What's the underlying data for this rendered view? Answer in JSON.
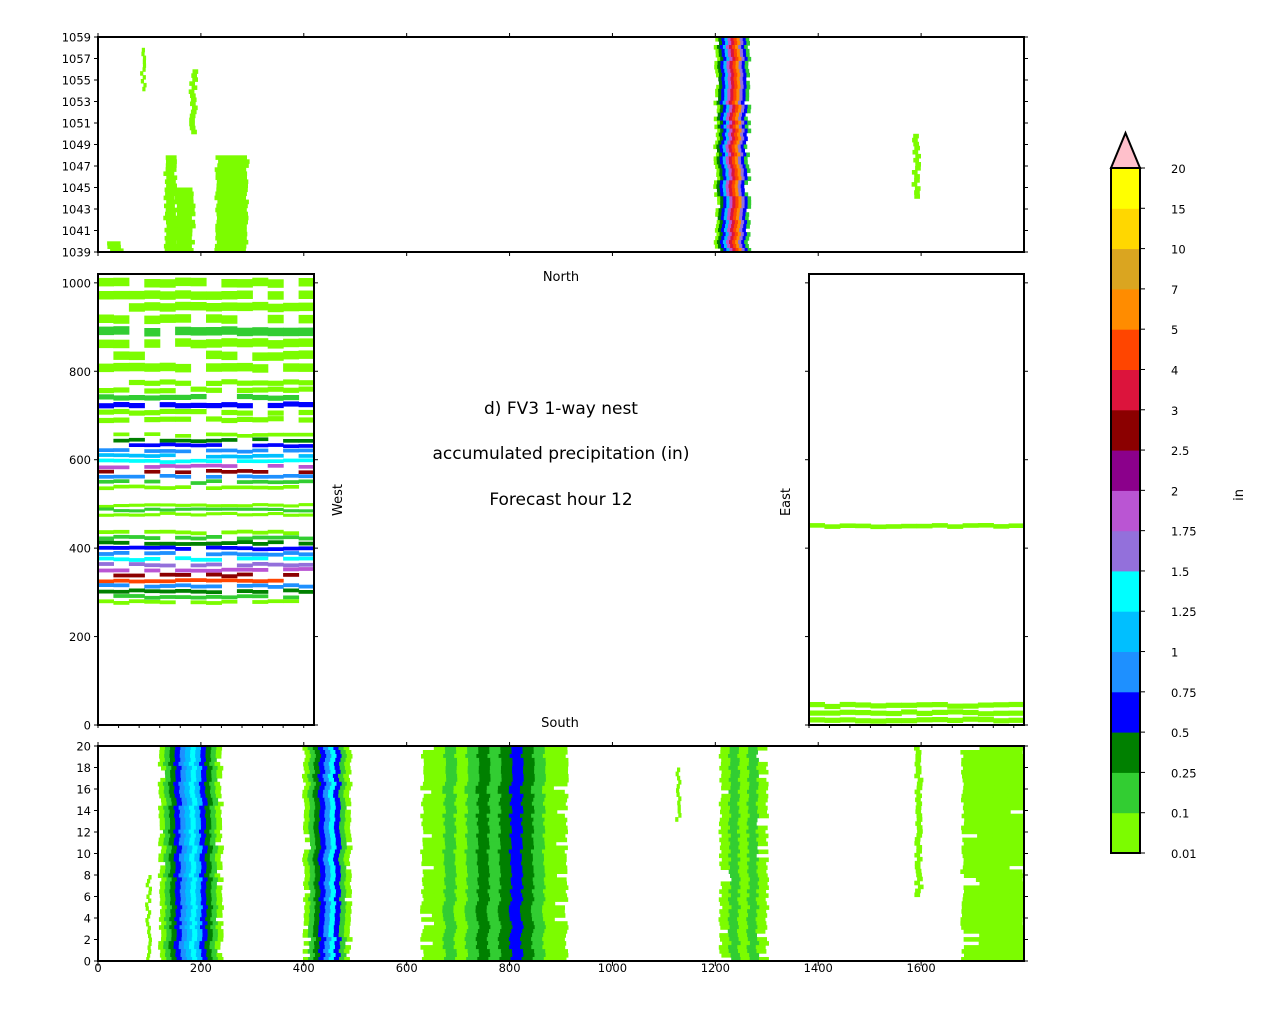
{
  "chart_data": {
    "type": "heatmap",
    "title_lines": [
      "d) FV3 1-way nest",
      "accumulated precipitation (in)",
      "Forecast hour 12"
    ],
    "side_labels": {
      "north": "North",
      "south": "South",
      "west": "West",
      "east": "East"
    },
    "colorbar": {
      "label": "in",
      "extend": "max",
      "levels": [
        0.01,
        0.1,
        0.25,
        0.5,
        0.75,
        1,
        1.25,
        1.5,
        1.75,
        2,
        2.5,
        3,
        4,
        5,
        7,
        10,
        15,
        20
      ],
      "level_labels": [
        "0.01",
        "0.1",
        "0.25",
        "0.5",
        "0.75",
        "1",
        "1.25",
        "1.5",
        "1.75",
        "2",
        "2.5",
        "3",
        "4",
        "5",
        "7",
        "10",
        "15",
        "20"
      ],
      "colors": [
        "#7cfc00",
        "#32cd32",
        "#008000",
        "#0000ff",
        "#1e90ff",
        "#00bfff",
        "#00ffff",
        "#9370db",
        "#ba55d3",
        "#8b008b",
        "#8b0000",
        "#dc143c",
        "#ff4500",
        "#ff8c00",
        "#daa520",
        "#ffd700",
        "#ffff00"
      ],
      "over_color": "#ffc0cb"
    },
    "panels": [
      {
        "name": "north",
        "xlim": [
          0,
          1800
        ],
        "ylim": [
          1039,
          1059
        ],
        "yticks": [
          1039,
          1041,
          1043,
          1045,
          1047,
          1049,
          1051,
          1053,
          1055,
          1057,
          1059
        ],
        "streaks": [
          {
            "x0": 1200,
            "x1": 1265,
            "y0": 1039,
            "y1": 1059,
            "levels": [
              0,
              2,
              3,
              5,
              8,
              11,
              12,
              13,
              7,
              3,
              1
            ]
          },
          {
            "x0": 85,
            "x1": 90,
            "y0": 1054,
            "y1": 1058,
            "levels": [
              0
            ]
          },
          {
            "x0": 180,
            "x1": 190,
            "y0": 1050,
            "y1": 1056,
            "levels": [
              0
            ]
          },
          {
            "x0": 130,
            "x1": 150,
            "y0": 1039,
            "y1": 1048,
            "levels": [
              0
            ]
          },
          {
            "x0": 150,
            "x1": 185,
            "y0": 1039,
            "y1": 1045,
            "levels": [
              0
            ]
          },
          {
            "x0": 230,
            "x1": 290,
            "y0": 1039,
            "y1": 1048,
            "levels": [
              0
            ]
          },
          {
            "x0": 20,
            "x1": 45,
            "y0": 1039,
            "y1": 1040,
            "levels": [
              0
            ]
          },
          {
            "x0": 1585,
            "x1": 1595,
            "y0": 1044,
            "y1": 1050,
            "levels": [
              0
            ]
          }
        ]
      },
      {
        "name": "west",
        "xlim": [
          0,
          420
        ],
        "ylim": [
          0,
          1020
        ],
        "xticks": [
          0,
          40,
          80,
          120,
          160,
          200,
          240,
          280,
          320,
          360,
          400
        ],
        "yticks": [
          0,
          200,
          400,
          600,
          800,
          1000
        ],
        "bands": [
          {
            "y0": 270,
            "y1": 440,
            "levels": [
              0,
              1,
              2,
              3,
              4,
              6,
              7,
              8,
              10,
              12,
              4,
              2,
              1,
              0
            ]
          },
          {
            "y0": 470,
            "y1": 500,
            "levels": [
              0,
              1,
              0
            ]
          },
          {
            "y0": 530,
            "y1": 660,
            "levels": [
              0,
              2,
              3,
              4,
              5,
              6,
              8,
              10,
              4,
              1,
              0
            ]
          },
          {
            "y0": 680,
            "y1": 780,
            "levels": [
              0,
              0,
              1,
              3,
              0,
              0
            ]
          },
          {
            "y0": 790,
            "y1": 1010,
            "levels": [
              0,
              0,
              0,
              0,
              1,
              0,
              0,
              0
            ]
          }
        ]
      },
      {
        "name": "east",
        "xlim": [
          0,
          420
        ],
        "ylim": [
          0,
          1020
        ],
        "xticks": [
          0,
          40,
          80,
          120,
          160,
          200,
          240,
          280,
          320,
          360,
          400
        ],
        "yticks": [
          0,
          200,
          400,
          600,
          800,
          1000
        ],
        "bands": [
          {
            "y0": 0,
            "y1": 50,
            "levels": [
              0,
              0,
              0
            ]
          },
          {
            "y0": 440,
            "y1": 455,
            "levels": [
              0
            ]
          }
        ]
      },
      {
        "name": "south",
        "xlim": [
          0,
          1800
        ],
        "ylim": [
          0,
          20
        ],
        "xticks": [
          0,
          200,
          400,
          600,
          800,
          1000,
          1200,
          1400,
          1600
        ],
        "yticks": [
          0,
          2,
          4,
          6,
          8,
          10,
          12,
          14,
          16,
          18,
          20
        ],
        "streaks": [
          {
            "x0": 95,
            "x1": 100,
            "y0": 0,
            "y1": 8,
            "levels": [
              0
            ]
          },
          {
            "x0": 120,
            "x1": 240,
            "y0": 0,
            "y1": 20,
            "levels": [
              0,
              1,
              2,
              3,
              4,
              5,
              6,
              5,
              3,
              2,
              1,
              0
            ]
          },
          {
            "x0": 400,
            "x1": 490,
            "y0": 0,
            "y1": 20,
            "levels": [
              0,
              1,
              2,
              3,
              4,
              6,
              3,
              1,
              0
            ]
          },
          {
            "x0": 630,
            "x1": 910,
            "y0": 0,
            "y1": 20,
            "levels": [
              0,
              0,
              1,
              0,
              1,
              2,
              1,
              2,
              3,
              2,
              1,
              0,
              0
            ]
          },
          {
            "x0": 1125,
            "x1": 1130,
            "y0": 13,
            "y1": 18,
            "levels": [
              0
            ]
          },
          {
            "x0": 1210,
            "x1": 1300,
            "y0": 0,
            "y1": 20,
            "levels": [
              0,
              1,
              0,
              1,
              0
            ]
          },
          {
            "x0": 1590,
            "x1": 1600,
            "y0": 6,
            "y1": 20,
            "levels": [
              0
            ]
          },
          {
            "x0": 1680,
            "x1": 1800,
            "y0": 0,
            "y1": 20,
            "levels": [
              0,
              0,
              0,
              0
            ]
          }
        ]
      }
    ]
  }
}
